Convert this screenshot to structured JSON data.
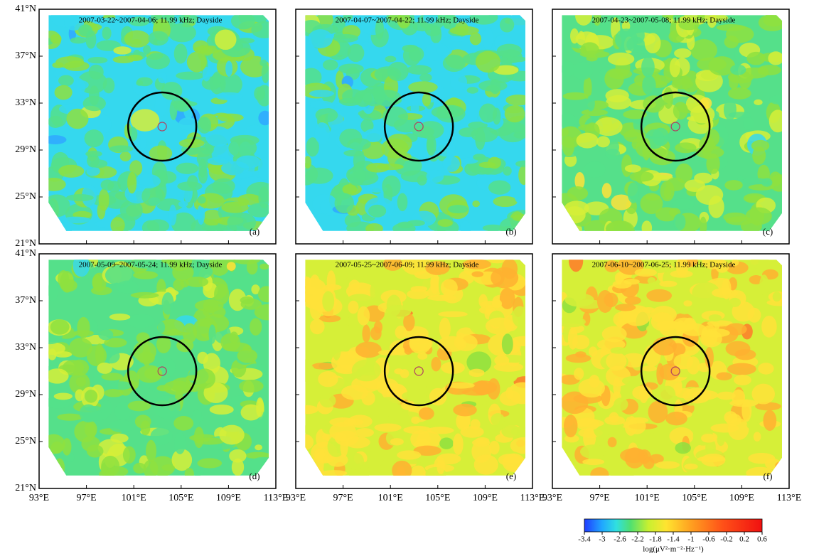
{
  "panels": [
    {
      "title": "2007-03-22~2007-04-06; 11.99 kHz; Dayside",
      "label": "(a)"
    },
    {
      "title": "2007-04-07~2007-04-22; 11.99 kHz; Dayside",
      "label": "(b)"
    },
    {
      "title": "2007-04-23~2007-05-08; 11.99 kHz; Dayside",
      "label": "(c)"
    },
    {
      "title": "2007-05-09~2007-05-24; 11.99 kHz; Dayside",
      "label": "(d)"
    },
    {
      "title": "2007-05-25~2007-06-09; 11.99 kHz; Dayside",
      "label": "(e)"
    },
    {
      "title": "2007-06-10~2007-06-25; 11.99 kHz; Dayside",
      "label": "(f)"
    }
  ],
  "xticks": [
    {
      "value": 93,
      "label": "93°E"
    },
    {
      "value": 97,
      "label": "97°E"
    },
    {
      "value": 101,
      "label": "101°E"
    },
    {
      "value": 105,
      "label": "105°E"
    },
    {
      "value": 109,
      "label": "109°E"
    },
    {
      "value": 113,
      "label": "113°E"
    }
  ],
  "yticks": [
    {
      "value": 21,
      "label": "21°N"
    },
    {
      "value": 25,
      "label": "25°N"
    },
    {
      "value": 29,
      "label": "29°N"
    },
    {
      "value": 33,
      "label": "33°N"
    },
    {
      "value": 37,
      "label": "37°N"
    },
    {
      "value": 41,
      "label": "41°N"
    }
  ],
  "colorbar": {
    "ticks": [
      -3.4,
      -3,
      -2.6,
      -2.2,
      -1.8,
      -1.4,
      -1,
      -0.6,
      -0.2,
      0.2,
      0.6
    ],
    "label": "log(μV²·m⁻²·Hz⁻¹)"
  }
}
